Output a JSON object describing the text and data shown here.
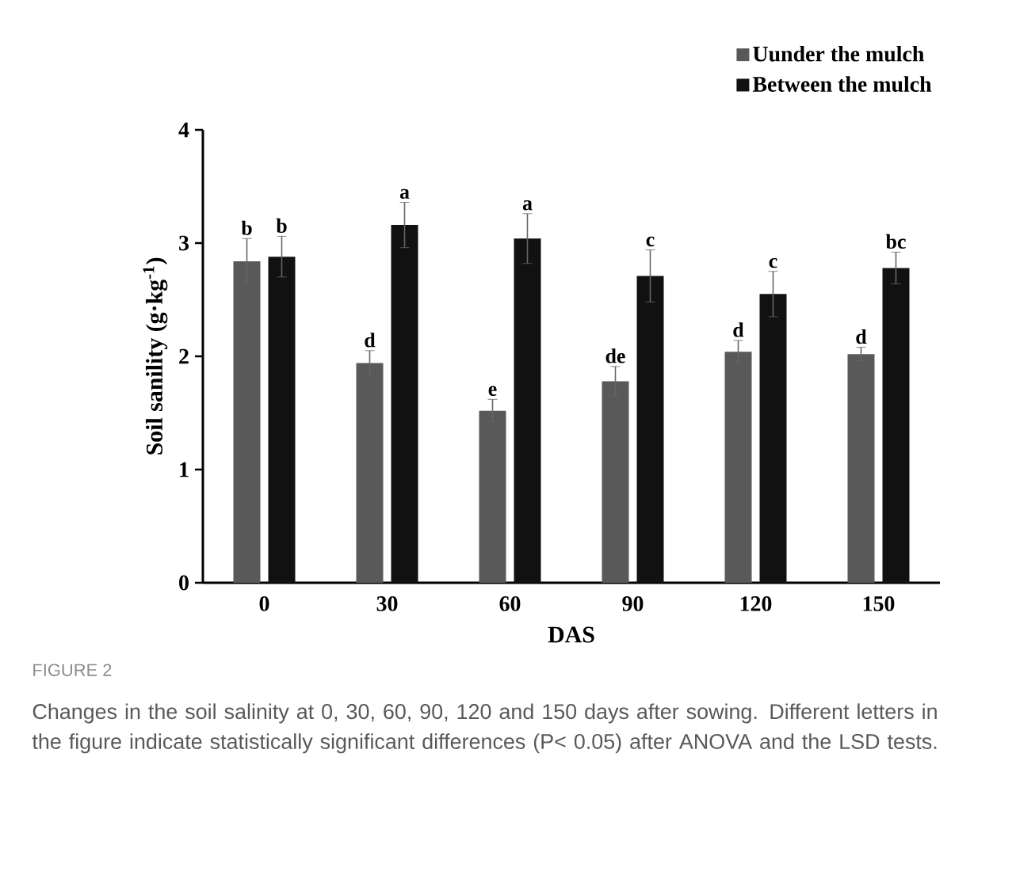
{
  "chart_data": {
    "type": "bar",
    "xlabel": "DAS",
    "ylabel": "Soil sanility (g·kg$^{-1}$)",
    "categories": [
      "0",
      "30",
      "60",
      "90",
      "120",
      "150"
    ],
    "series": [
      {
        "name": "Uunder the mulch",
        "color": "#595959",
        "values": [
          2.84,
          1.94,
          1.52,
          1.78,
          2.04,
          2.02
        ],
        "errors": [
          0.2,
          0.11,
          0.1,
          0.13,
          0.1,
          0.06
        ],
        "value_labels": [
          "b",
          "d",
          "e",
          "de",
          "d",
          "d"
        ]
      },
      {
        "name": "Between  the mulch",
        "color": "#111111",
        "values": [
          2.88,
          3.16,
          3.04,
          2.71,
          2.55,
          2.78
        ],
        "errors": [
          0.18,
          0.2,
          0.22,
          0.23,
          0.2,
          0.14
        ],
        "value_labels": [
          "b",
          "a",
          "a",
          "c",
          "c",
          "bc"
        ]
      }
    ],
    "ylim": [
      0,
      4
    ],
    "yticks": [
      0,
      1,
      2,
      3,
      4
    ],
    "legend": "top right",
    "annotations": [
      "FIGURE 2",
      "Changes in the soil salinity at 0, 30, 60, 90, 120 and 150 days after sowing. Different letters in the figure indicate statistically significant differences (P< 0.05) after ANOVA and the LSD tests."
    ]
  }
}
